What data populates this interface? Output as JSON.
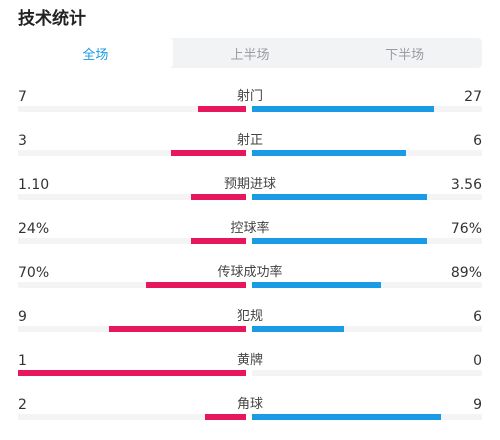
{
  "title": "技术统计",
  "tabs": [
    {
      "label": "全场",
      "active": true
    },
    {
      "label": "上半场",
      "active": false
    },
    {
      "label": "下半场",
      "active": false
    }
  ],
  "colors": {
    "home": "#e8175d",
    "away": "#1a9be6",
    "active_tab": "#1a9be6"
  },
  "stats": [
    {
      "name": "射门",
      "home": "7",
      "away": "27",
      "home_fill": 0.21,
      "away_fill": 0.79
    },
    {
      "name": "射正",
      "home": "3",
      "away": "6",
      "home_fill": 0.33,
      "away_fill": 0.67
    },
    {
      "name": "预期进球",
      "home": "1.10",
      "away": "3.56",
      "home_fill": 0.24,
      "away_fill": 0.76
    },
    {
      "name": "控球率",
      "home": "24%",
      "away": "76%",
      "home_fill": 0.24,
      "away_fill": 0.76
    },
    {
      "name": "传球成功率",
      "home": "70%",
      "away": "89%",
      "home_fill": 0.44,
      "away_fill": 0.56
    },
    {
      "name": "犯规",
      "home": "9",
      "away": "6",
      "home_fill": 0.6,
      "away_fill": 0.4
    },
    {
      "name": "黄牌",
      "home": "1",
      "away": "0",
      "home_fill": 1.0,
      "away_fill": 0.0
    },
    {
      "name": "角球",
      "home": "2",
      "away": "9",
      "home_fill": 0.18,
      "away_fill": 0.82
    }
  ]
}
